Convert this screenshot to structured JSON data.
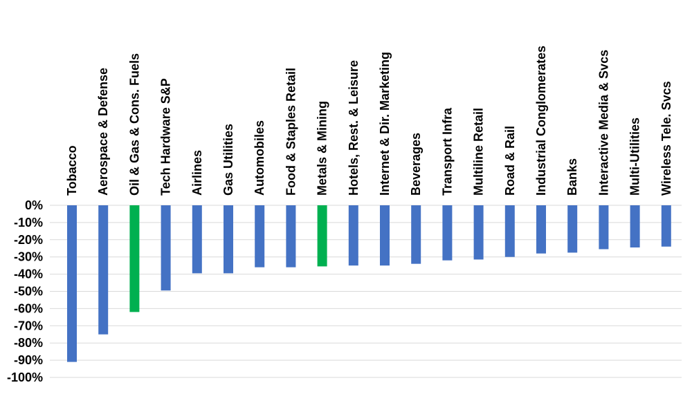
{
  "chart_data": {
    "type": "bar",
    "title": "",
    "xlabel": "",
    "ylabel": "",
    "ylim": [
      -100,
      0
    ],
    "yticks": [
      0,
      -10,
      -20,
      -30,
      -40,
      -50,
      -60,
      -70,
      -80,
      -90,
      -100
    ],
    "ytick_labels": [
      "0%",
      "-10%",
      "-20%",
      "-30%",
      "-40%",
      "-50%",
      "-60%",
      "-70%",
      "-80%",
      "-90%",
      "-100%"
    ],
    "grid": true,
    "legend": "none",
    "categories": [
      "Tobacco",
      "Aerospace & Defense",
      "Oil & Gas & Cons. Fuels",
      "Tech Hardware S&P",
      "Airlines",
      "Gas Utilities",
      "Automobiles",
      "Food & Staples Retail",
      "Metals & Mining",
      "Hotels, Rest. & Leisure",
      "Internet & Dir. Marketing",
      "Beverages",
      "Transport Infra",
      "Multiline Retail",
      "Road & Rail",
      "Industrial Conglomerates",
      "Banks",
      "Interactive Media & Svcs",
      "Multi-Utilities",
      "Wireless Tele. Svcs"
    ],
    "values": [
      -91,
      -75,
      -62,
      -49.5,
      -39.5,
      -39.5,
      -36,
      -36,
      -35.5,
      -35,
      -35,
      -34,
      -32,
      -31.5,
      -30,
      -28,
      -27.5,
      -25.5,
      -24.5,
      -24
    ],
    "colors": [
      "#4472c4",
      "#4472c4",
      "#00b050",
      "#4472c4",
      "#4472c4",
      "#4472c4",
      "#4472c4",
      "#4472c4",
      "#00b050",
      "#4472c4",
      "#4472c4",
      "#4472c4",
      "#4472c4",
      "#4472c4",
      "#4472c4",
      "#4472c4",
      "#4472c4",
      "#4472c4",
      "#4472c4",
      "#4472c4"
    ]
  }
}
